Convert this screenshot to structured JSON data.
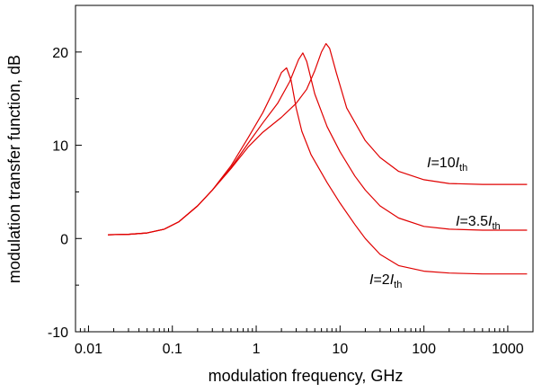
{
  "chart_data": {
    "type": "line",
    "xlabel": "modulation frequency, GHz",
    "ylabel": "modulation transfer function, dB",
    "x_scale": "log",
    "xlim": [
      0.007,
      2000
    ],
    "ylim": [
      -10,
      25
    ],
    "x_ticks": [
      {
        "value": 0.01,
        "label": "0.01"
      },
      {
        "value": 0.1,
        "label": "0.1"
      },
      {
        "value": 1,
        "label": "1"
      },
      {
        "value": 10,
        "label": "10"
      },
      {
        "value": 100,
        "label": "100"
      },
      {
        "value": 1000,
        "label": "1000"
      }
    ],
    "y_ticks": [
      {
        "value": -10,
        "label": "-10"
      },
      {
        "value": 0,
        "label": "0"
      },
      {
        "value": 10,
        "label": "10"
      },
      {
        "value": 20,
        "label": "20"
      }
    ],
    "grid": false,
    "line_color": "#e00000",
    "series": [
      {
        "label_main": "I",
        "label_eq": "=2",
        "label_sub": "th",
        "points": [
          [
            0.017,
            0.4
          ],
          [
            0.03,
            0.45
          ],
          [
            0.05,
            0.6
          ],
          [
            0.08,
            1.0
          ],
          [
            0.12,
            1.8
          ],
          [
            0.2,
            3.5
          ],
          [
            0.3,
            5.2
          ],
          [
            0.5,
            7.8
          ],
          [
            0.8,
            10.8
          ],
          [
            1.2,
            13.5
          ],
          [
            1.6,
            15.8
          ],
          [
            2.0,
            17.8
          ],
          [
            2.3,
            18.3
          ],
          [
            2.6,
            17.0
          ],
          [
            3.0,
            14.0
          ],
          [
            3.5,
            11.5
          ],
          [
            4.5,
            9.0
          ],
          [
            7,
            6.0
          ],
          [
            10,
            3.8
          ],
          [
            15,
            1.5
          ],
          [
            20,
            0.0
          ],
          [
            30,
            -1.7
          ],
          [
            50,
            -2.9
          ],
          [
            100,
            -3.5
          ],
          [
            200,
            -3.7
          ],
          [
            500,
            -3.8
          ],
          [
            1700,
            -3.8
          ]
        ]
      },
      {
        "label_main": "I",
        "label_eq": "=3.5",
        "label_sub": "th",
        "points": [
          [
            0.017,
            0.4
          ],
          [
            0.03,
            0.45
          ],
          [
            0.05,
            0.6
          ],
          [
            0.08,
            1.0
          ],
          [
            0.12,
            1.8
          ],
          [
            0.2,
            3.5
          ],
          [
            0.3,
            5.2
          ],
          [
            0.5,
            7.6
          ],
          [
            0.8,
            10.2
          ],
          [
            1.2,
            12.4
          ],
          [
            1.8,
            14.5
          ],
          [
            2.5,
            16.8
          ],
          [
            3.2,
            19.2
          ],
          [
            3.6,
            19.9
          ],
          [
            4.0,
            19.0
          ],
          [
            5,
            15.5
          ],
          [
            7,
            12.0
          ],
          [
            10,
            9.3
          ],
          [
            15,
            6.7
          ],
          [
            20,
            5.2
          ],
          [
            30,
            3.5
          ],
          [
            50,
            2.2
          ],
          [
            100,
            1.3
          ],
          [
            200,
            1.0
          ],
          [
            500,
            0.9
          ],
          [
            1700,
            0.9
          ]
        ]
      },
      {
        "label_main": "I",
        "label_eq": "=10",
        "label_sub": "th",
        "points": [
          [
            0.017,
            0.4
          ],
          [
            0.03,
            0.45
          ],
          [
            0.05,
            0.6
          ],
          [
            0.08,
            1.0
          ],
          [
            0.12,
            1.8
          ],
          [
            0.2,
            3.5
          ],
          [
            0.3,
            5.2
          ],
          [
            0.5,
            7.5
          ],
          [
            0.8,
            9.8
          ],
          [
            1.2,
            11.4
          ],
          [
            2,
            13.0
          ],
          [
            3,
            14.5
          ],
          [
            4,
            16.0
          ],
          [
            5,
            18.0
          ],
          [
            6,
            20.0
          ],
          [
            6.8,
            20.9
          ],
          [
            7.5,
            20.4
          ],
          [
            9,
            17.8
          ],
          [
            12,
            14.0
          ],
          [
            20,
            10.5
          ],
          [
            30,
            8.7
          ],
          [
            50,
            7.2
          ],
          [
            100,
            6.3
          ],
          [
            200,
            5.9
          ],
          [
            500,
            5.8
          ],
          [
            1700,
            5.8
          ]
        ]
      }
    ]
  }
}
